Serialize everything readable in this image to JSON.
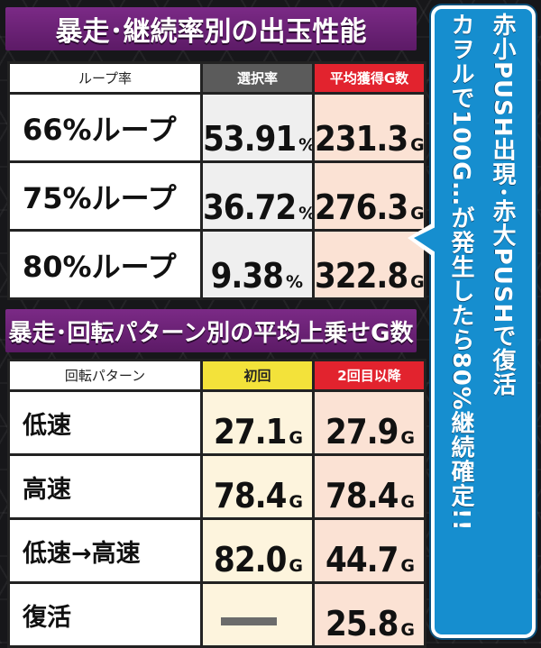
{
  "section1": {
    "title": "暴走･継続率別の出玉性能",
    "headers": {
      "label": "ループ率",
      "col1": "選択率",
      "col2": "平均獲得G数"
    },
    "rows": [
      {
        "label": "66%ループ",
        "rate": "53.91",
        "rate_unit": "%",
        "avg": "231.3",
        "avg_unit": "G"
      },
      {
        "label": "75%ループ",
        "rate": "36.72",
        "rate_unit": "%",
        "avg": "276.3",
        "avg_unit": "G"
      },
      {
        "label": "80%ループ",
        "rate": "9.38",
        "rate_unit": "%",
        "avg": "322.8",
        "avg_unit": "G"
      }
    ]
  },
  "section2": {
    "title": "暴走･回転パターン別の平均上乗せG数",
    "headers": {
      "label": "回転パターン",
      "col1": "初回",
      "col2": "2回目以降"
    },
    "rows": [
      {
        "label": "低速",
        "first": "27.1",
        "first_unit": "G",
        "second": "27.9",
        "second_unit": "G"
      },
      {
        "label": "高速",
        "first": "78.4",
        "first_unit": "G",
        "second": "78.4",
        "second_unit": "G"
      },
      {
        "label": "低速→高速",
        "first": "82.0",
        "first_unit": "G",
        "second": "44.7",
        "second_unit": "G"
      },
      {
        "label": "復活",
        "first": "",
        "first_unit": "",
        "second": "25.8",
        "second_unit": "G"
      }
    ]
  },
  "side_note": {
    "line1": "赤小PUSH出現･赤大PUSHで復活",
    "line2": "カヲルで100G…が発生したら80%継続確定!!"
  },
  "colors": {
    "header_purple": "#6b2276",
    "gray_header": "#5b5b5b",
    "red_header": "#e2232e",
    "yellow_header": "#f3e23a",
    "side_blue": "#168ecf"
  }
}
